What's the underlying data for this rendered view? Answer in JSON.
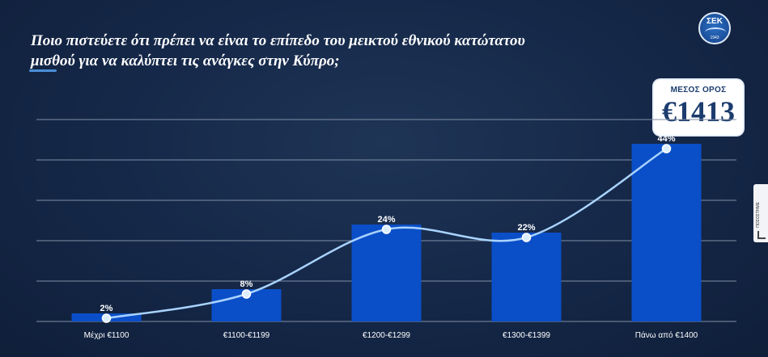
{
  "title_line1": "Ποιο πιστεύετε ότι πρέπει να είναι το επίπεδο του μεικτού εθνικού κατώτατου",
  "title_line2": "μισθού για να καλύπτει τις ανάγκες στην Κύπρο;",
  "logo": {
    "text": "ΣΕΚ",
    "year": "1943"
  },
  "mean": {
    "label": "ΜΕΣΟΣ ΟΡΟΣ",
    "value": "€1413"
  },
  "side_tab": {
    "label": "ΠΟΣΟΣΤΗΜΕ",
    "icon": "bar-chart-icon"
  },
  "colors": {
    "bar": "#0a4fc8",
    "line": "#a9d3ff",
    "point_fill": "#dbeeff",
    "grid": "#7f8fa6",
    "text": "#ffffff"
  },
  "chart_data": {
    "type": "bar",
    "categories": [
      "Μέχρι €1100",
      "€1100-€1199",
      "€1200-€1299",
      "€1300-€1399",
      "Πάνω από €1400"
    ],
    "values": [
      2,
      8,
      24,
      22,
      44
    ],
    "data_labels": [
      "2%",
      "8%",
      "24%",
      "22%",
      "44%"
    ],
    "overlay_line": true,
    "ylim": [
      0,
      50
    ],
    "grid": true,
    "legend": false
  }
}
